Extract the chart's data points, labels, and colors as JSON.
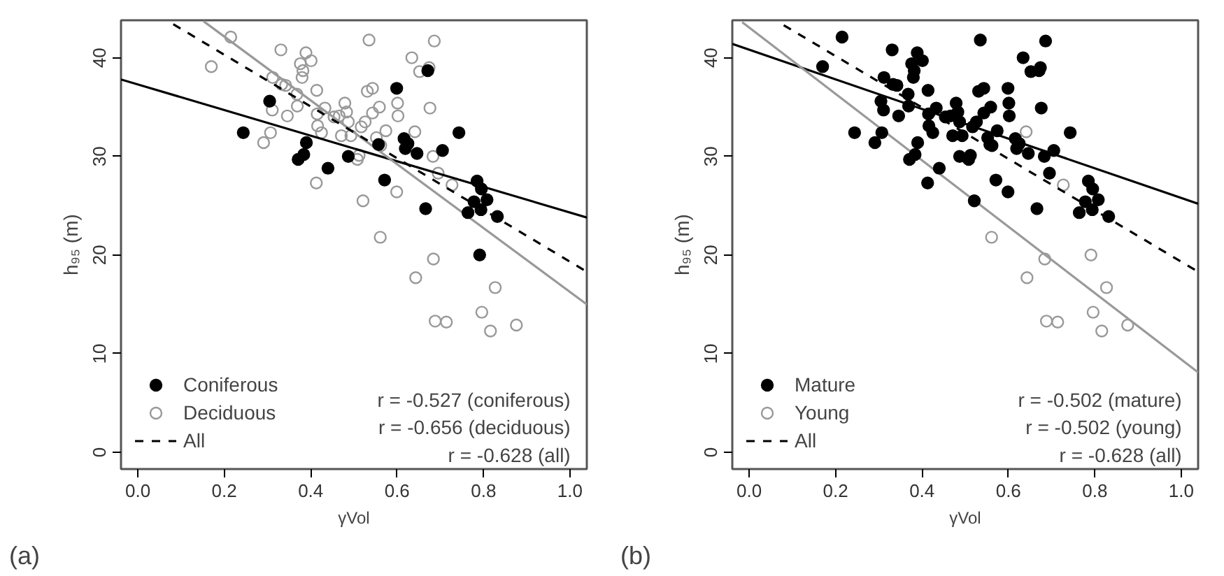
{
  "chart_data": [
    {
      "type": "scatter",
      "xlabel": "γVol",
      "ylabel": "h₉₅ (m)",
      "xlim": [
        -0.039,
        1.039
      ],
      "ylim": [
        -1.7,
        43.8
      ],
      "xticks": [
        {
          "value": 0,
          "label": "0.0"
        },
        {
          "value": 0.2,
          "label": "0.2"
        },
        {
          "value": 0.4,
          "label": "0.4"
        },
        {
          "value": 0.6,
          "label": "0.6"
        },
        {
          "value": 0.8,
          "label": "0.8"
        },
        {
          "value": 1,
          "label": "1.0"
        }
      ],
      "yticks": [
        0,
        10,
        20,
        30,
        40
      ],
      "grid": false,
      "legend": "bottom left",
      "annotations": [
        "r = -0.527 (coniferous)",
        "r = -0.656 (deciduous)",
        "r = -0.628 (all)",
        "(a)"
      ],
      "series": [
        {
          "name": "Coniferous",
          "marker": "circle",
          "color": "#000000",
          "x": [
            0.244,
            0.305,
            0.371,
            0.384,
            0.39,
            0.44,
            0.487,
            0.557,
            0.571,
            0.599,
            0.616,
            0.619,
            0.625,
            0.646,
            0.666,
            0.671,
            0.705,
            0.743,
            0.764,
            0.778,
            0.785,
            0.795,
            0.794,
            0.808,
            0.832,
            0.791
          ],
          "values": [
            32.4,
            35.6,
            29.7,
            30.2,
            31.4,
            28.8,
            30.0,
            31.2,
            27.6,
            36.9,
            31.8,
            30.8,
            31.3,
            30.3,
            24.7,
            38.7,
            30.6,
            32.4,
            24.3,
            25.4,
            27.5,
            26.7,
            24.6,
            25.6,
            23.9,
            20.0
          ]
        },
        {
          "name": "Deciduous",
          "marker": "circle",
          "color": "#999999",
          "x": [
            0.215,
            0.17,
            0.291,
            0.307,
            0.311,
            0.312,
            0.331,
            0.333,
            0.342,
            0.346,
            0.368,
            0.369,
            0.376,
            0.38,
            0.382,
            0.389,
            0.401,
            0.413,
            0.414,
            0.416,
            0.425,
            0.433,
            0.415,
            0.454,
            0.466,
            0.471,
            0.479,
            0.483,
            0.487,
            0.493,
            0.508,
            0.512,
            0.517,
            0.521,
            0.526,
            0.531,
            0.543,
            0.535,
            0.543,
            0.552,
            0.559,
            0.562,
            0.574,
            0.561,
            0.599,
            0.602,
            0.601,
            0.634,
            0.641,
            0.652,
            0.674,
            0.676,
            0.683,
            0.686,
            0.695,
            0.727,
            0.684,
            0.643,
            0.688,
            0.714,
            0.796,
            0.827,
            0.816,
            0.876
          ],
          "values": [
            42.1,
            39.1,
            31.4,
            32.4,
            34.7,
            38.0,
            40.8,
            37.3,
            37.2,
            34.1,
            36.3,
            35.1,
            39.4,
            38.0,
            38.7,
            40.5,
            39.7,
            27.3,
            36.7,
            33.1,
            32.4,
            34.9,
            34.3,
            34.0,
            34.1,
            32.1,
            35.4,
            34.5,
            33.5,
            32.1,
            29.7,
            30.1,
            33.0,
            25.5,
            33.5,
            36.6,
            36.9,
            41.8,
            34.4,
            31.9,
            35.0,
            31.1,
            32.6,
            21.8,
            26.4,
            34.1,
            35.4,
            40.0,
            32.5,
            38.6,
            39.0,
            34.9,
            30.0,
            41.7,
            28.3,
            27.1,
            19.6,
            17.7,
            13.3,
            13.2,
            14.2,
            16.7,
            12.3,
            12.9
          ]
        },
        {
          "type": "line",
          "color": "#000000",
          "line_style": "solid",
          "x": [
            -0.039,
            1.039
          ],
          "values": [
            37.8,
            23.8
          ]
        },
        {
          "type": "line",
          "color": "#999999",
          "line_style": "solid",
          "x": [
            0.152,
            1.039
          ],
          "values": [
            43.7,
            15.0
          ]
        },
        {
          "name": "All",
          "type": "line",
          "color": "#000000",
          "line_style": "dashed",
          "x": [
            0.082,
            1.039
          ],
          "values": [
            43.4,
            18.3
          ]
        }
      ]
    },
    {
      "type": "scatter",
      "xlabel": "γVol",
      "ylabel": "h₉₅ (m)",
      "xlim": [
        -0.039,
        1.039
      ],
      "ylim": [
        -1.7,
        43.8
      ],
      "xticks": [
        {
          "value": 0,
          "label": "0.0"
        },
        {
          "value": 0.2,
          "label": "0.2"
        },
        {
          "value": 0.4,
          "label": "0.4"
        },
        {
          "value": 0.6,
          "label": "0.6"
        },
        {
          "value": 0.8,
          "label": "0.8"
        },
        {
          "value": 1,
          "label": "1.0"
        }
      ],
      "yticks": [
        0,
        10,
        20,
        30,
        40
      ],
      "grid": false,
      "legend": "bottom left",
      "annotations": [
        "r = -0.502 (mature)",
        "r = -0.502 (young)",
        "r = -0.628 (all)",
        "(b)"
      ],
      "series": [
        {
          "name": "Mature",
          "marker": "circle",
          "color": "#000000",
          "x": [
            0.244,
            0.305,
            0.371,
            0.384,
            0.39,
            0.44,
            0.487,
            0.557,
            0.571,
            0.599,
            0.616,
            0.619,
            0.625,
            0.646,
            0.666,
            0.671,
            0.705,
            0.743,
            0.764,
            0.778,
            0.785,
            0.795,
            0.794,
            0.808,
            0.832,
            0.215,
            0.17,
            0.291,
            0.307,
            0.311,
            0.312,
            0.331,
            0.333,
            0.342,
            0.346,
            0.368,
            0.369,
            0.376,
            0.38,
            0.382,
            0.389,
            0.401,
            0.413,
            0.414,
            0.416,
            0.425,
            0.433,
            0.415,
            0.454,
            0.466,
            0.471,
            0.479,
            0.483,
            0.487,
            0.493,
            0.508,
            0.512,
            0.517,
            0.521,
            0.526,
            0.531,
            0.543,
            0.535,
            0.543,
            0.552,
            0.559,
            0.562,
            0.574,
            0.599,
            0.602,
            0.601,
            0.634,
            0.652,
            0.674,
            0.676,
            0.683,
            0.686,
            0.695
          ],
          "values": [
            32.4,
            35.6,
            29.7,
            30.2,
            31.4,
            28.8,
            30.0,
            31.2,
            27.6,
            36.9,
            31.8,
            30.8,
            31.3,
            30.3,
            24.7,
            38.7,
            30.6,
            32.4,
            24.3,
            25.4,
            27.5,
            26.7,
            24.6,
            25.6,
            23.9,
            42.1,
            39.1,
            31.4,
            32.4,
            34.7,
            38.0,
            40.8,
            37.3,
            37.2,
            34.1,
            36.3,
            35.1,
            39.4,
            38.0,
            38.7,
            40.5,
            39.7,
            27.3,
            36.7,
            33.1,
            32.4,
            34.9,
            34.3,
            34.0,
            34.1,
            32.1,
            35.4,
            34.5,
            33.5,
            32.1,
            29.7,
            30.1,
            33.0,
            25.5,
            33.5,
            36.6,
            36.9,
            41.8,
            34.4,
            31.9,
            35.0,
            31.1,
            32.6,
            26.4,
            34.1,
            35.4,
            40.0,
            38.6,
            39.0,
            34.9,
            30.0,
            41.7,
            28.3
          ]
        },
        {
          "name": "Young",
          "marker": "circle",
          "color": "#999999",
          "x": [
            0.561,
            0.641,
            0.727,
            0.684,
            0.643,
            0.688,
            0.714,
            0.796,
            0.827,
            0.816,
            0.876,
            0.791
          ],
          "values": [
            21.8,
            32.5,
            27.1,
            19.6,
            17.7,
            13.3,
            13.2,
            14.2,
            16.7,
            12.3,
            12.9,
            20.0
          ]
        },
        {
          "type": "line",
          "color": "#000000",
          "line_style": "solid",
          "x": [
            -0.039,
            1.039
          ],
          "values": [
            41.4,
            25.2
          ]
        },
        {
          "type": "line",
          "color": "#999999",
          "line_style": "solid",
          "x": [
            -0.016,
            1.039
          ],
          "values": [
            43.6,
            8.1
          ]
        },
        {
          "name": "All",
          "type": "line",
          "color": "#000000",
          "line_style": "dashed",
          "x": [
            0.08,
            1.039
          ],
          "values": [
            43.3,
            18.3
          ]
        }
      ]
    }
  ]
}
